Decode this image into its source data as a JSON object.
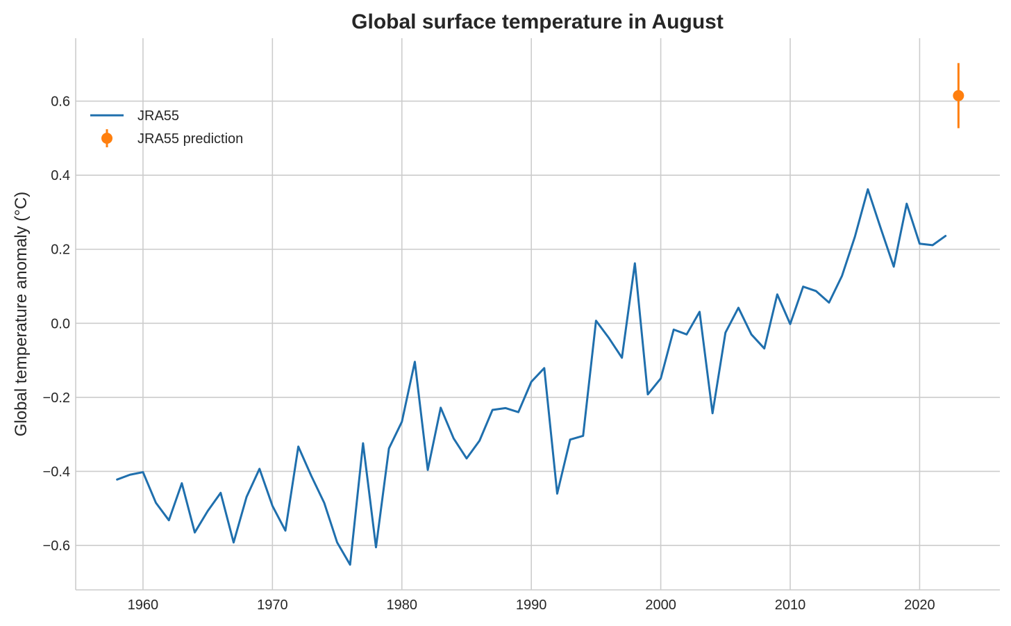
{
  "chart_data": {
    "type": "line",
    "title": "Global surface temperature in August",
    "xlabel": "",
    "ylabel": "Global temperature anomaly (°C)",
    "xlim": [
      1954.8,
      2026.2
    ],
    "ylim": [
      -0.72,
      0.77
    ],
    "xticks": [
      1960,
      1970,
      1980,
      1990,
      2000,
      2010,
      2020
    ],
    "yticks": [
      -0.6,
      -0.4,
      -0.2,
      0.0,
      0.2,
      0.4,
      0.6
    ],
    "xtick_labels": [
      "1960",
      "1970",
      "1980",
      "1990",
      "2000",
      "2010",
      "2020"
    ],
    "ytick_labels": [
      "−0.6",
      "−0.4",
      "−0.2",
      "0.0",
      "0.2",
      "0.4",
      "0.6"
    ],
    "grid": true,
    "legend_placement": "upper-left",
    "series": [
      {
        "name": "JRA55",
        "kind": "line",
        "color": "#1f6fad",
        "x": [
          1958,
          1959,
          1960,
          1961,
          1962,
          1963,
          1964,
          1965,
          1966,
          1967,
          1968,
          1969,
          1970,
          1971,
          1972,
          1973,
          1974,
          1975,
          1976,
          1977,
          1978,
          1979,
          1980,
          1981,
          1982,
          1983,
          1984,
          1985,
          1986,
          1987,
          1988,
          1989,
          1990,
          1991,
          1992,
          1993,
          1994,
          1995,
          1996,
          1997,
          1998,
          1999,
          2000,
          2001,
          2002,
          2003,
          2004,
          2005,
          2006,
          2007,
          2008,
          2009,
          2010,
          2011,
          2012,
          2013,
          2014,
          2015,
          2016,
          2017,
          2018,
          2019,
          2020,
          2021,
          2022
        ],
        "y": [
          -0.422,
          -0.409,
          -0.402,
          -0.485,
          -0.532,
          -0.432,
          -0.565,
          -0.507,
          -0.458,
          -0.592,
          -0.469,
          -0.393,
          -0.493,
          -0.56,
          -0.333,
          -0.412,
          -0.485,
          -0.592,
          -0.652,
          -0.324,
          -0.605,
          -0.338,
          -0.266,
          -0.104,
          -0.396,
          -0.228,
          -0.311,
          -0.365,
          -0.317,
          -0.234,
          -0.229,
          -0.24,
          -0.158,
          -0.121,
          -0.46,
          -0.314,
          -0.304,
          0.007,
          -0.04,
          -0.093,
          0.162,
          -0.192,
          -0.149,
          -0.017,
          -0.03,
          0.031,
          -0.243,
          -0.025,
          0.042,
          -0.03,
          -0.068,
          0.078,
          -0.002,
          0.099,
          0.087,
          0.056,
          0.128,
          0.234,
          0.362,
          0.256,
          0.153,
          0.323,
          0.215,
          0.211,
          0.236
        ]
      },
      {
        "name": "JRA55 prediction",
        "kind": "errorbar",
        "color": "#ff7f0e",
        "x": [
          2023
        ],
        "y": [
          0.615
        ],
        "yerr": [
          0.088
        ]
      }
    ]
  }
}
